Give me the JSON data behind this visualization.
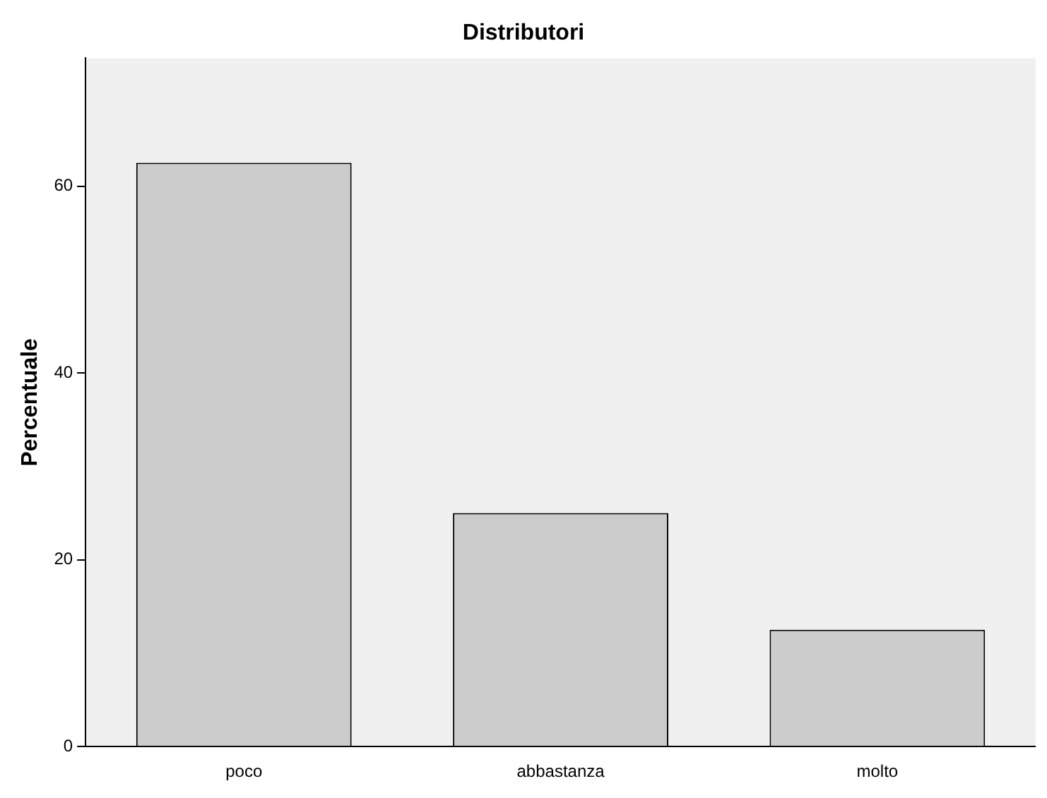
{
  "chart_data": {
    "type": "bar",
    "title": "Distributori",
    "ylabel": "Percentuale",
    "categories": [
      "poco",
      "abbastanza",
      "molto"
    ],
    "values": [
      62.5,
      25,
      12.5
    ],
    "color": "#cccccc",
    "ylim": [
      0,
      73.7
    ],
    "yticks": [
      0,
      20,
      40,
      60
    ],
    "grid": false,
    "legend": false
  }
}
